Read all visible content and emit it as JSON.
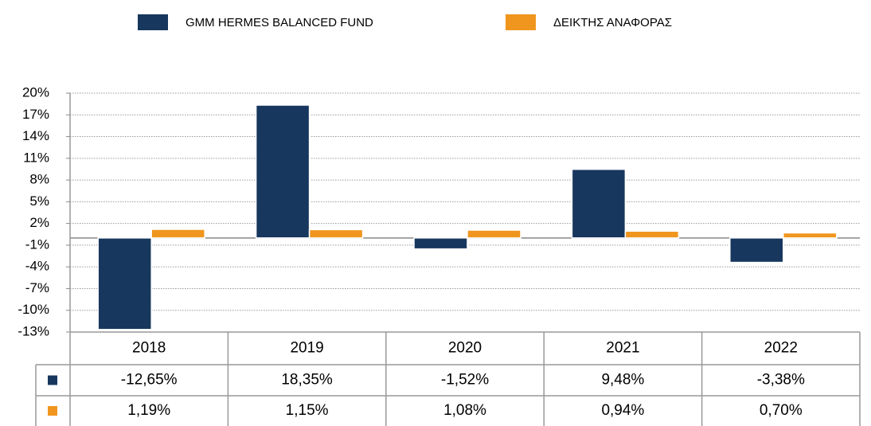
{
  "chart_data": {
    "type": "bar",
    "categories": [
      "2018",
      "2019",
      "2020",
      "2021",
      "2022"
    ],
    "series": [
      {
        "name": "GMM HERMES BALANCED FUND",
        "color": "#17375e",
        "values": [
          -12.65,
          18.35,
          -1.52,
          9.48,
          -3.38
        ],
        "value_labels": [
          "-12,65%",
          "18,35%",
          "-1,52%",
          "9,48%",
          "-3,38%"
        ]
      },
      {
        "name": "ΔΕΙΚΤΗΣ ΑΝΑΦΟΡΑΣ",
        "color": "#f0961e",
        "values": [
          1.19,
          1.15,
          1.08,
          0.94,
          0.7
        ],
        "value_labels": [
          "1,19%",
          "1,15%",
          "1,08%",
          "0,94%",
          "0,70%"
        ]
      }
    ],
    "ylim": [
      -13,
      20
    ],
    "yticks": [
      {
        "value": 20,
        "label": "20%"
      },
      {
        "value": 17,
        "label": "17%"
      },
      {
        "value": 14,
        "label": "14%"
      },
      {
        "value": 11,
        "label": "11%"
      },
      {
        "value": 8,
        "label": "8%"
      },
      {
        "value": 5,
        "label": "5%"
      },
      {
        "value": 2,
        "label": "2%"
      },
      {
        "value": -1,
        "label": "-1%"
      },
      {
        "value": -4,
        "label": "-4%"
      },
      {
        "value": -7,
        "label": "-7%"
      },
      {
        "value": -10,
        "label": "-10%"
      },
      {
        "value": -13,
        "label": "-13%"
      }
    ],
    "grid": true
  }
}
